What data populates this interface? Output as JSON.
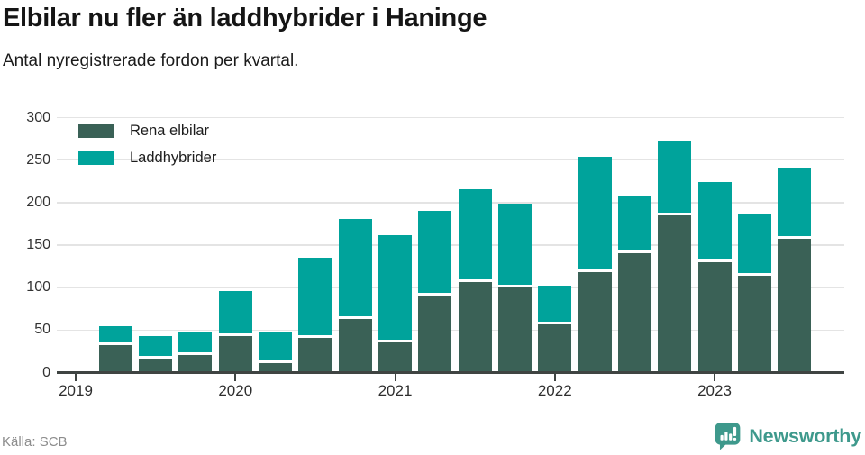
{
  "header": {
    "title": "Elbilar nu fler än laddhybrider i Haninge",
    "subtitle": "Antal nyregistrerade fordon per kvartal."
  },
  "footer": {
    "source": "Källa: SCB",
    "brand": "Newsworthy"
  },
  "colors": {
    "electric": "#3A6156",
    "hybrid": "#00A39B",
    "brand_teal": "#3E998C",
    "grid": "#E4E4E4",
    "axis": "#3F4442"
  },
  "chart_data": {
    "type": "bar",
    "stacked": true,
    "title": "Elbilar nu fler än laddhybrider i Haninge",
    "subtitle": "Antal nyregistrerade fordon per kvartal.",
    "categories": [
      "2019 Q2",
      "2019 Q3",
      "2019 Q4",
      "2020 Q1",
      "2020 Q2",
      "2020 Q3",
      "2020 Q4",
      "2021 Q1",
      "2021 Q2",
      "2021 Q3",
      "2021 Q4",
      "2022 Q1",
      "2022 Q2",
      "2022 Q3",
      "2022 Q4",
      "2023 Q1",
      "2023 Q2",
      "2023 Q3"
    ],
    "series": [
      {
        "name": "Rena elbilar",
        "color": "#3A6156",
        "values": [
          32,
          16,
          21,
          43,
          11,
          41,
          63,
          35,
          91,
          107,
          100,
          57,
          118,
          140,
          185,
          130,
          114,
          157
        ]
      },
      {
        "name": "Laddhybrider",
        "color": "#00A39B",
        "values": [
          23,
          27,
          26,
          53,
          37,
          94,
          118,
          127,
          99,
          109,
          99,
          45,
          136,
          68,
          87,
          94,
          72,
          84
        ]
      }
    ],
    "totals": [
      55,
      43,
      47,
      96,
      48,
      135,
      181,
      162,
      190,
      216,
      199,
      102,
      254,
      208,
      272,
      224,
      186,
      241
    ],
    "x_tick_labels": [
      "2019",
      "2020",
      "2021",
      "2022",
      "2023"
    ],
    "y_ticks": [
      0,
      50,
      100,
      150,
      200,
      250,
      300
    ],
    "ylim": [
      0,
      300
    ],
    "xlabel": "",
    "ylabel": "",
    "grid": true,
    "legend_position": "top-left"
  }
}
